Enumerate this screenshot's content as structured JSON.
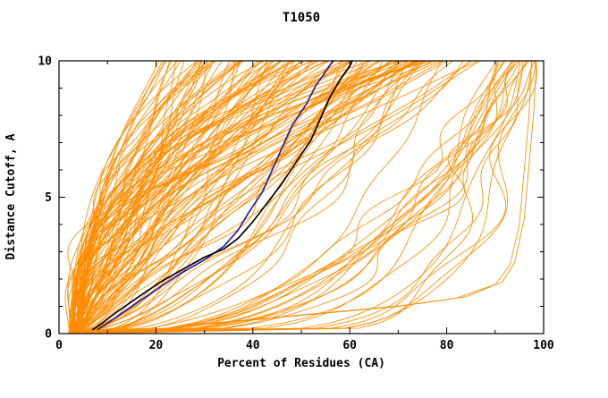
{
  "title": "T1050",
  "chart_data": {
    "type": "line",
    "title": "T1050",
    "xlabel": "Percent of Residues (CA)",
    "ylabel": "Distance Cutoff, A",
    "xlim": [
      0,
      100
    ],
    "ylim": [
      0,
      10
    ],
    "x_major_ticks": [
      0,
      20,
      40,
      60,
      80,
      100
    ],
    "y_major_ticks": [
      0,
      5,
      10
    ],
    "x_minor_step": 10,
    "y_minor_step": 1,
    "grid": false,
    "legend_position": "none",
    "colors": {
      "ensemble": "#ff8c00",
      "model_black": "#000000",
      "model_blue": "#222299",
      "frame": "#000000",
      "background": "#ffffff"
    },
    "series": [
      {
        "name": "highlighted-model-black",
        "color": "#000000",
        "points": [
          [
            7,
            0.15
          ],
          [
            9,
            0.4
          ],
          [
            12,
            0.8
          ],
          [
            16,
            1.3
          ],
          [
            21,
            1.9
          ],
          [
            26,
            2.4
          ],
          [
            30,
            2.8
          ],
          [
            34,
            3.1
          ],
          [
            37,
            3.5
          ],
          [
            40,
            4.1
          ],
          [
            43,
            4.8
          ],
          [
            46,
            5.5
          ],
          [
            49,
            6.3
          ],
          [
            52,
            7.1
          ],
          [
            54,
            7.9
          ],
          [
            56,
            8.7
          ],
          [
            58,
            9.3
          ],
          [
            60,
            9.8
          ],
          [
            60.5,
            10
          ]
        ]
      },
      {
        "name": "highlighted-model-blue",
        "color": "#222299",
        "points": [
          [
            8,
            0.15
          ],
          [
            11,
            0.5
          ],
          [
            15,
            1.0
          ],
          [
            20,
            1.6
          ],
          [
            25,
            2.2
          ],
          [
            30,
            2.7
          ],
          [
            34,
            3.2
          ],
          [
            37,
            3.8
          ],
          [
            39,
            4.4
          ],
          [
            42,
            5.2
          ],
          [
            44,
            6.0
          ],
          [
            46,
            6.8
          ],
          [
            48,
            7.6
          ],
          [
            51,
            8.4
          ],
          [
            53,
            9.1
          ],
          [
            55,
            9.6
          ],
          [
            56.5,
            10
          ]
        ]
      }
    ],
    "extra_curves": [
      {
        "name": "low-sweep-model-1",
        "points": [
          [
            24,
            0.25
          ],
          [
            40,
            0.5
          ],
          [
            55,
            0.75
          ],
          [
            70,
            1.0
          ],
          [
            82,
            1.3
          ],
          [
            90,
            1.8
          ],
          [
            93,
            2.5
          ],
          [
            95,
            4.0
          ],
          [
            96,
            6.0
          ],
          [
            97,
            8.0
          ],
          [
            97.5,
            10
          ]
        ]
      },
      {
        "name": "low-sweep-model-2",
        "points": [
          [
            26,
            0.3
          ],
          [
            42,
            0.55
          ],
          [
            57,
            0.8
          ],
          [
            72,
            1.05
          ],
          [
            84,
            1.35
          ],
          [
            91.5,
            1.9
          ],
          [
            94,
            2.6
          ],
          [
            96,
            4.2
          ],
          [
            97,
            6.2
          ],
          [
            98,
            8.2
          ],
          [
            98.5,
            10
          ]
        ]
      }
    ],
    "ensemble": {
      "description": "orange background curves, one per predicted model",
      "count": 150,
      "seed": 1337,
      "x_start": [
        2,
        5
      ],
      "groups": [
        {
          "fraction": 0.15,
          "xtop": [
            90,
            99.5
          ],
          "p": [
            0.1,
            0.45
          ],
          "xtop_bias": 1
        },
        {
          "fraction": 0.07,
          "xtop": [
            74,
            90
          ],
          "p": [
            0.3,
            1.9
          ],
          "xtop_bias": 1
        },
        {
          "fraction": 0.78,
          "xtop": [
            20,
            78
          ],
          "p": [
            0.33,
            2.85
          ],
          "xtop_bias": 0.8
        }
      ],
      "wiggle": {
        "amplitude_frac": [
          0.02,
          0.09
        ],
        "frequency": [
          1.0,
          3.2
        ]
      }
    }
  }
}
